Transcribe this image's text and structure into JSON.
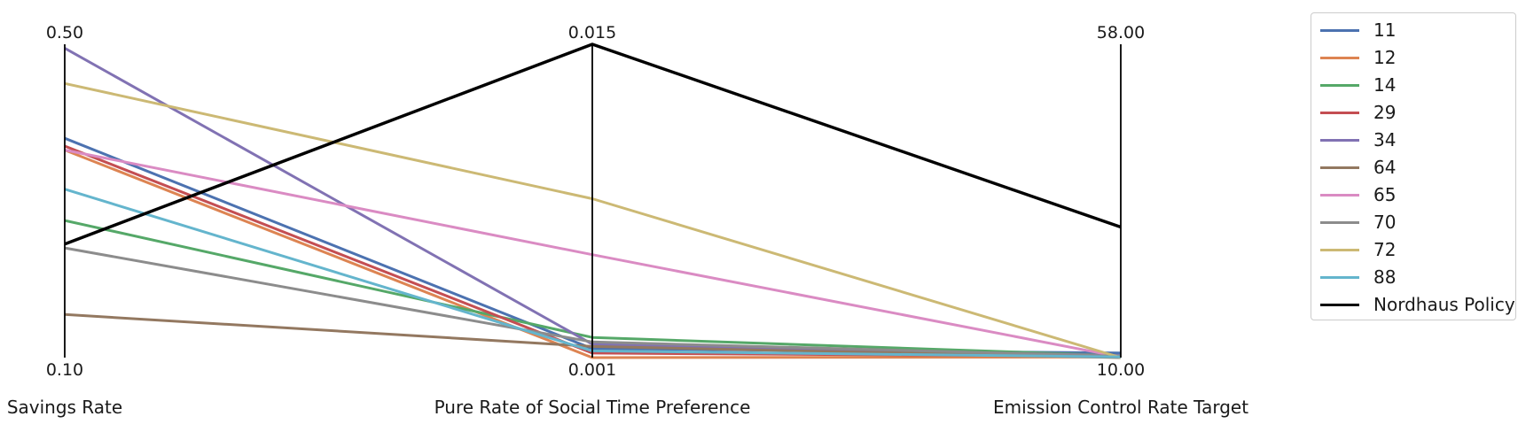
{
  "chart_data": {
    "type": "parallel-coordinates",
    "axes": [
      {
        "label": "Savings Rate",
        "min": 0.1,
        "max": 0.5,
        "min_label": "0.10",
        "max_label": "0.50"
      },
      {
        "label": "Pure Rate of Social Time Preference",
        "min": 0.001,
        "max": 0.015,
        "min_label": "0.001",
        "max_label": "0.015"
      },
      {
        "label": "Emission Control Rate Target",
        "min": 10.0,
        "max": 58.0,
        "min_label": "10.00",
        "max_label": "58.00"
      }
    ],
    "series": [
      {
        "name": "11",
        "color": "#4c72b0",
        "values": [
          0.38,
          0.0014,
          10.7
        ]
      },
      {
        "name": "12",
        "color": "#dd8452",
        "values": [
          0.365,
          0.001,
          10.1
        ]
      },
      {
        "name": "14",
        "color": "#55a868",
        "values": [
          0.275,
          0.0019,
          10.3
        ]
      },
      {
        "name": "29",
        "color": "#c44e52",
        "values": [
          0.37,
          0.0012,
          10.2
        ]
      },
      {
        "name": "34",
        "color": "#8172b3",
        "values": [
          0.495,
          0.0016,
          10.3
        ]
      },
      {
        "name": "64",
        "color": "#937860",
        "values": [
          0.155,
          0.0015,
          10.0
        ]
      },
      {
        "name": "65",
        "color": "#da8bc3",
        "values": [
          0.365,
          0.0056,
          10.1
        ]
      },
      {
        "name": "70",
        "color": "#8c8c8c",
        "values": [
          0.24,
          0.0017,
          10.2
        ]
      },
      {
        "name": "72",
        "color": "#ccb974",
        "values": [
          0.45,
          0.0081,
          10.0
        ]
      },
      {
        "name": "88",
        "color": "#64b5cd",
        "values": [
          0.315,
          0.0013,
          10.1
        ]
      },
      {
        "name": "Nordhaus Policy",
        "color": "#000000",
        "values": [
          0.245,
          0.015,
          30.0
        ]
      }
    ],
    "legend_position": "right"
  }
}
